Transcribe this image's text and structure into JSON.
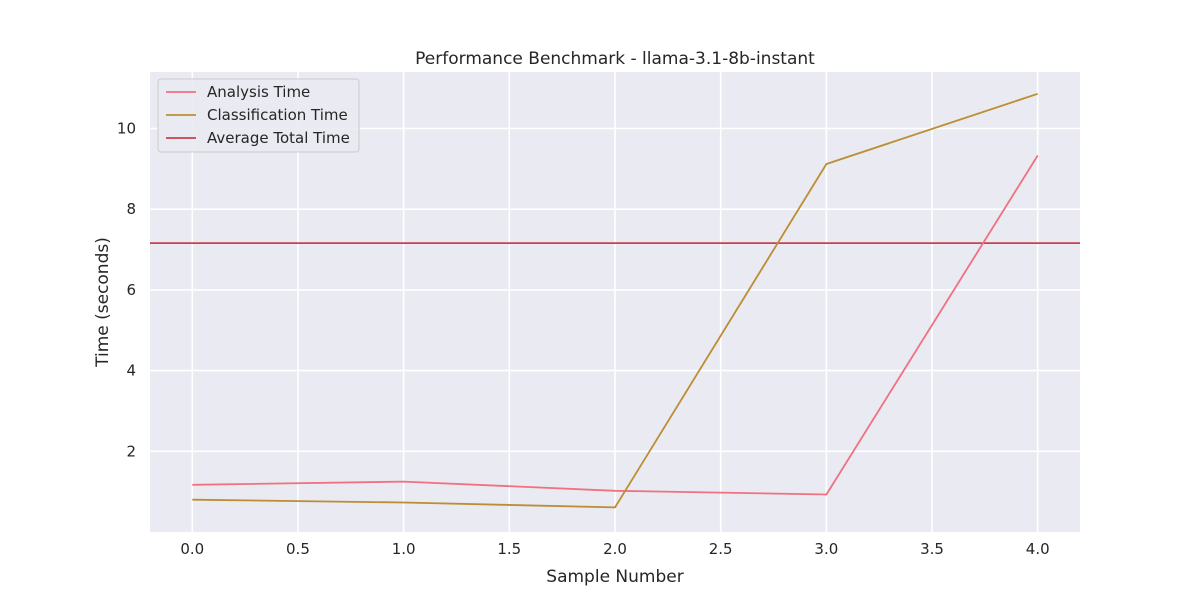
{
  "chart_data": {
    "type": "line",
    "title": "Performance Benchmark - llama-3.1-8b-instant",
    "xlabel": "Sample Number",
    "ylabel": "Time (seconds)",
    "xlim": [
      -0.2,
      4.2
    ],
    "ylim": [
      0.0,
      11.4
    ],
    "xticks": [
      "0.0",
      "0.5",
      "1.0",
      "1.5",
      "2.0",
      "2.5",
      "3.0",
      "3.5",
      "4.0"
    ],
    "yticks": [
      "2",
      "4",
      "6",
      "8",
      "10"
    ],
    "grid": true,
    "legend_position": "top-left",
    "x": [
      0,
      1,
      2,
      3,
      4
    ],
    "series": [
      {
        "name": "Analysis Time",
        "color": "#f0717f",
        "values": [
          1.17,
          1.25,
          1.02,
          0.93,
          9.33
        ]
      },
      {
        "name": "Classification Time",
        "color": "#bb8e33",
        "values": [
          0.8,
          0.73,
          0.61,
          9.12,
          10.86
        ]
      }
    ],
    "hlines": [
      {
        "name": "Average Total Time",
        "color": "#c8414b",
        "value": 7.16
      }
    ]
  }
}
